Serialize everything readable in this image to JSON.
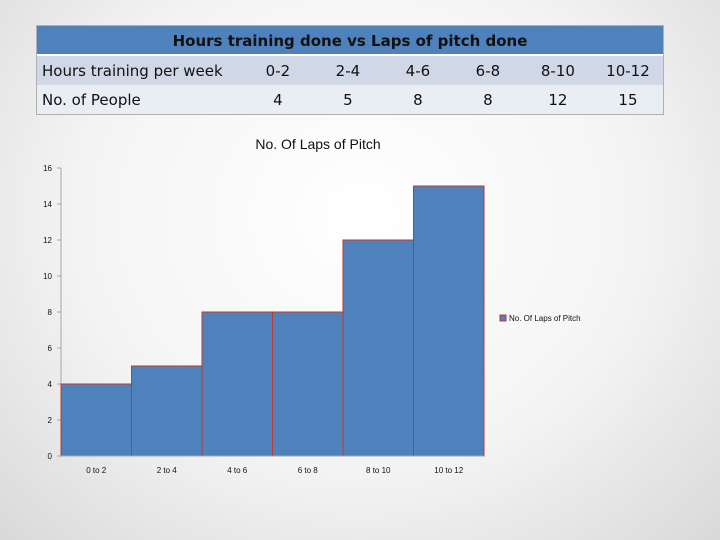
{
  "table": {
    "title": "Hours training done vs Laps of pitch done",
    "rows": [
      {
        "label": "Hours training per week",
        "cells": [
          "0-2",
          "2-4",
          "4-6",
          "6-8",
          "8-10",
          "10-12"
        ]
      },
      {
        "label": "No. of People",
        "cells": [
          "4",
          "5",
          "8",
          "8",
          "12",
          "15"
        ]
      }
    ]
  },
  "chart_data": {
    "type": "bar",
    "title": "No. Of Laps of Pitch",
    "categories": [
      "0 to 2",
      "2 to 4",
      "4 to 6",
      "6 to 8",
      "8 to 10",
      "10 to 12"
    ],
    "series": [
      {
        "name": "No. Of Laps of Pitch",
        "values": [
          4,
          5,
          8,
          8,
          12,
          15
        ]
      }
    ],
    "ylim": [
      0,
      16
    ],
    "yticks": [
      0,
      2,
      4,
      6,
      8,
      10,
      12,
      14,
      16
    ],
    "grid": false,
    "legend": "right",
    "colors": {
      "bar": "#4f81bd",
      "bar_edge": "#c0392b",
      "axis": "#a6a6a6"
    }
  }
}
